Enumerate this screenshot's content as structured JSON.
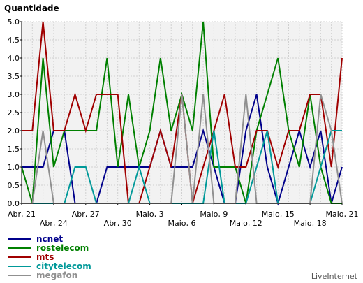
{
  "chart_data": {
    "type": "line",
    "title": "Quantidade",
    "xlabel": "",
    "ylabel": "",
    "ylim": [
      0,
      5
    ],
    "yticks": [
      "0.0",
      "0.5",
      "1.0",
      "1.5",
      "2.0",
      "2.5",
      "3.0",
      "3.5",
      "4.0",
      "4.5",
      "5.0"
    ],
    "grid": true,
    "x": [
      "Abr, 21",
      "Abr, 22",
      "Abr, 23",
      "Abr, 24",
      "Abr, 25",
      "Abr, 26",
      "Abr, 27",
      "Abr, 28",
      "Abr, 29",
      "Abr, 30",
      "Maio, 1",
      "Maio, 2",
      "Maio, 3",
      "Maio, 4",
      "Maio, 5",
      "Maio, 6",
      "Maio, 7",
      "Maio, 8",
      "Maio, 9",
      "Maio, 10",
      "Maio, 11",
      "Maio, 12",
      "Maio, 13",
      "Maio, 14",
      "Maio, 15",
      "Maio, 16",
      "Maio, 17",
      "Maio, 18",
      "Maio, 19",
      "Maio, 20",
      "Maio, 21"
    ],
    "xtick_labels": [
      {
        "label": "Abr, 21",
        "index": 0,
        "row": 0
      },
      {
        "label": "Abr, 24",
        "index": 3,
        "row": 1
      },
      {
        "label": "Abr, 27",
        "index": 6,
        "row": 0
      },
      {
        "label": "Abr, 30",
        "index": 9,
        "row": 1
      },
      {
        "label": "Maio, 3",
        "index": 12,
        "row": 0
      },
      {
        "label": "Maio, 6",
        "index": 15,
        "row": 1
      },
      {
        "label": "Maio, 9",
        "index": 18,
        "row": 0
      },
      {
        "label": "Maio, 12",
        "index": 21,
        "row": 1
      },
      {
        "label": "Maio, 15",
        "index": 24,
        "row": 0
      },
      {
        "label": "Maio, 18",
        "index": 27,
        "row": 1
      },
      {
        "label": "Maio, 21",
        "index": 30,
        "row": 0
      }
    ],
    "legend_position": "bottom-left",
    "series": [
      {
        "name": "ncnet",
        "color": "#00008b",
        "values": [
          1,
          1,
          1,
          2,
          2,
          0,
          0,
          0,
          1,
          1,
          1,
          1,
          1,
          2,
          1,
          1,
          1,
          2,
          1,
          0,
          0,
          2,
          3,
          1,
          0,
          1,
          2,
          1,
          2,
          0,
          1
        ]
      },
      {
        "name": "rostelecom",
        "color": "#008000",
        "values": [
          1,
          0,
          4,
          1,
          2,
          2,
          2,
          2,
          4,
          1,
          3,
          1,
          2,
          4,
          2,
          3,
          2,
          5,
          1,
          1,
          1,
          0,
          2,
          3,
          4,
          2,
          1,
          3,
          1,
          0,
          0
        ]
      },
      {
        "name": "mts",
        "color": "#a00000",
        "values": [
          2,
          2,
          5,
          2,
          2,
          3,
          2,
          3,
          3,
          3,
          0,
          0,
          1,
          2,
          1,
          3,
          0,
          1,
          2,
          3,
          1,
          1,
          2,
          2,
          1,
          2,
          2,
          3,
          3,
          1,
          4
        ]
      },
      {
        "name": "citytelecom",
        "color": "#009999",
        "values": [
          0,
          0,
          0,
          0,
          0,
          1,
          1,
          0,
          0,
          0,
          0,
          1,
          0,
          0,
          0,
          0,
          0,
          0,
          2,
          0,
          0,
          0,
          1,
          2,
          0,
          0,
          0,
          0,
          1,
          2,
          2
        ]
      },
      {
        "name": "megafon",
        "color": "#909090",
        "values": [
          0,
          0,
          2,
          0,
          0,
          0,
          0,
          0,
          0,
          0,
          0,
          0,
          0,
          0,
          0,
          3,
          0,
          3,
          0,
          0,
          0,
          3,
          0,
          0,
          0,
          0,
          0,
          0,
          3,
          2,
          0
        ]
      }
    ]
  },
  "credit": "LiveInternet"
}
